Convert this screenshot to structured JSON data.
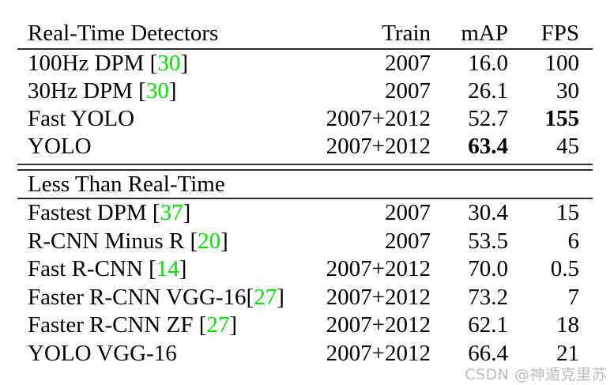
{
  "colors": {
    "background": "#ffffff",
    "text": "#000000",
    "rule": "#2f2f2f",
    "citation": "#00e400",
    "watermark": "#b9bec4"
  },
  "table": {
    "headers": {
      "detector": "Real-Time Detectors",
      "train": "Train",
      "map": "mAP",
      "fps": "FPS"
    },
    "realtime_rows": [
      {
        "name_pre": "100Hz DPM [",
        "cite": "30",
        "name_post": "]",
        "train": "2007",
        "map": "16.0",
        "fps": "100",
        "map_bold": false,
        "fps_bold": false
      },
      {
        "name_pre": "30Hz DPM [",
        "cite": "30",
        "name_post": "]",
        "train": "2007",
        "map": "26.1",
        "fps": "30",
        "map_bold": false,
        "fps_bold": false
      },
      {
        "name_pre": "Fast YOLO",
        "cite": "",
        "name_post": "",
        "train": "2007+2012",
        "map": "52.7",
        "fps": "155",
        "map_bold": false,
        "fps_bold": true
      },
      {
        "name_pre": "YOLO",
        "cite": "",
        "name_post": "",
        "train": "2007+2012",
        "map": "63.4",
        "fps": "45",
        "map_bold": true,
        "fps_bold": false
      }
    ],
    "section2_label": "Less Than Real-Time",
    "slower_rows": [
      {
        "name_pre": "Fastest DPM [",
        "cite": "37",
        "name_post": "]",
        "train": "2007",
        "map": "30.4",
        "fps": "15",
        "map_bold": false,
        "fps_bold": false
      },
      {
        "name_pre": "R-CNN Minus R [",
        "cite": "20",
        "name_post": "]",
        "train": "2007",
        "map": "53.5",
        "fps": "6",
        "map_bold": false,
        "fps_bold": false
      },
      {
        "name_pre": "Fast R-CNN [",
        "cite": "14",
        "name_post": "]",
        "train": "2007+2012",
        "map": "70.0",
        "fps": "0.5",
        "map_bold": false,
        "fps_bold": false
      },
      {
        "name_pre": "Faster R-CNN VGG-16[",
        "cite": "27",
        "name_post": "]",
        "train": "2007+2012",
        "map": "73.2",
        "fps": "7",
        "map_bold": false,
        "fps_bold": false
      },
      {
        "name_pre": "Faster R-CNN ZF [",
        "cite": "27",
        "name_post": "]",
        "train": "2007+2012",
        "map": "62.1",
        "fps": "18",
        "map_bold": false,
        "fps_bold": false
      },
      {
        "name_pre": "YOLO VGG-16",
        "cite": "",
        "name_post": "",
        "train": "2007+2012",
        "map": "66.4",
        "fps": "21",
        "map_bold": false,
        "fps_bold": false
      }
    ]
  },
  "watermark": {
    "text": "CSDN @神遁克里苏"
  }
}
